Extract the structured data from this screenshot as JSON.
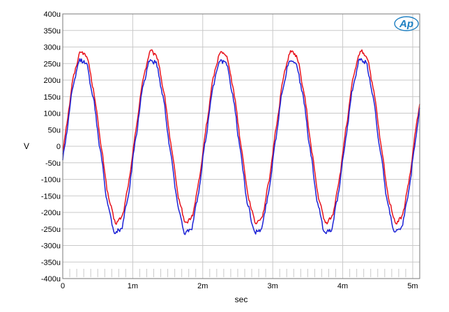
{
  "chart_data": {
    "type": "line",
    "title": "",
    "xlabel": "sec",
    "ylabel": "V",
    "xlim": [
      0,
      0.0051
    ],
    "ylim": [
      -0.0004,
      0.0004
    ],
    "grid": true,
    "x_ticks": [
      "0",
      "1m",
      "2m",
      "3m",
      "4m",
      "5m"
    ],
    "y_ticks": [
      "400u",
      "350u",
      "300u",
      "250u",
      "200u",
      "150u",
      "100u",
      "50u",
      "0",
      "-50u",
      "-100u",
      "-150u",
      "-200u",
      "-250u",
      "-300u",
      "-350u",
      "-400u"
    ],
    "series": [
      {
        "color": "#e8121b",
        "frequency_hz": 1000,
        "amplitude_v": 0.000258,
        "offset_v": 2.8e-05,
        "noise_v": 8e-06,
        "values": "sine wave: peaks ≈ +285u (up to +300u), troughs ≈ -230u to -250u"
      },
      {
        "color": "#1c22d6",
        "frequency_hz": 1000,
        "amplitude_v": 0.000262,
        "offset_v": 0.0,
        "noise_v": 1e-05,
        "values": "sine wave: peaks ≈ +260u, troughs ≈ -260u to -275u"
      }
    ]
  },
  "logo": {
    "text": "Ap"
  }
}
